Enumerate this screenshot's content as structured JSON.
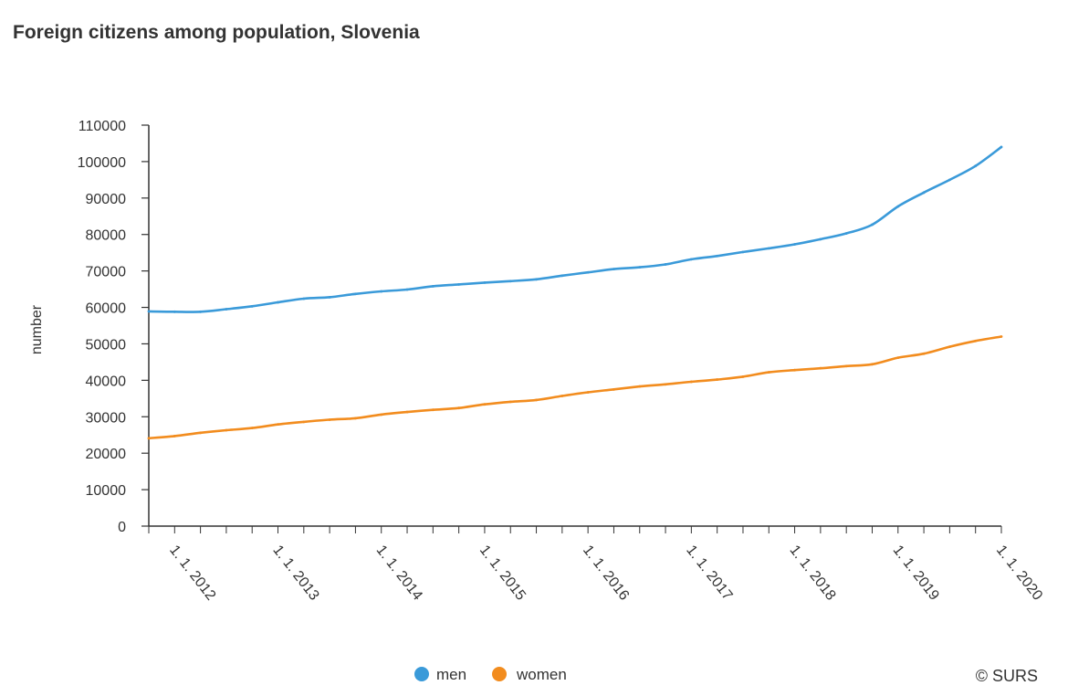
{
  "chart_data": {
    "type": "line",
    "title": "Foreign citizens among population, Slovenia",
    "ylabel": "number",
    "xlabel": "",
    "ylim": [
      0,
      110000
    ],
    "yticks": [
      0,
      10000,
      20000,
      30000,
      40000,
      50000,
      60000,
      70000,
      80000,
      90000,
      100000,
      110000
    ],
    "x": [
      "1.10.2011",
      "1.1.2012",
      "1.4.2012",
      "1.7.2012",
      "1.10.2012",
      "1.1.2013",
      "1.4.2013",
      "1.7.2013",
      "1.10.2013",
      "1.1.2014",
      "1.4.2014",
      "1.7.2014",
      "1.10.2014",
      "1.1.2015",
      "1.4.2015",
      "1.7.2015",
      "1.10.2015",
      "1.1.2016",
      "1.4.2016",
      "1.7.2016",
      "1.10.2016",
      "1.1.2017",
      "1.4.2017",
      "1.7.2017",
      "1.10.2017",
      "1.1.2018",
      "1.4.2018",
      "1.7.2018",
      "1.10.2018",
      "1.1.2019",
      "1.4.2019",
      "1.7.2019",
      "1.10.2019",
      "1.1.2020"
    ],
    "tick_labels": [
      "1. 1. 2012",
      "1. 1. 2013",
      "1. 1. 2014",
      "1. 1. 2015",
      "1. 1. 2016",
      "1. 1. 2017",
      "1. 1. 2018",
      "1. 1. 2019",
      "1. 1. 2020"
    ],
    "tick_indices": [
      1,
      5,
      9,
      13,
      17,
      21,
      25,
      29,
      33
    ],
    "grid": false,
    "legend_position": "bottom-center",
    "series": [
      {
        "name": "men",
        "color": "#3a9ad9",
        "values": [
          58900,
          58800,
          58800,
          59500,
          60300,
          61400,
          62400,
          62800,
          63700,
          64400,
          64900,
          65800,
          66300,
          66800,
          67200,
          67700,
          68700,
          69600,
          70500,
          71000,
          71800,
          73200,
          74100,
          75200,
          76200,
          77300,
          78700,
          80300,
          82700,
          87700,
          91500,
          95000,
          98800,
          104000
        ]
      },
      {
        "name": "women",
        "color": "#f28c1e",
        "values": [
          24100,
          24700,
          25600,
          26300,
          26900,
          27900,
          28600,
          29200,
          29600,
          30600,
          31300,
          31900,
          32400,
          33400,
          34100,
          34600,
          35700,
          36700,
          37500,
          38300,
          38900,
          39600,
          40200,
          41000,
          42200,
          42800,
          43300,
          43900,
          44400,
          46200,
          47300,
          49200,
          50800,
          52000
        ]
      }
    ]
  },
  "credit": "© SURS"
}
